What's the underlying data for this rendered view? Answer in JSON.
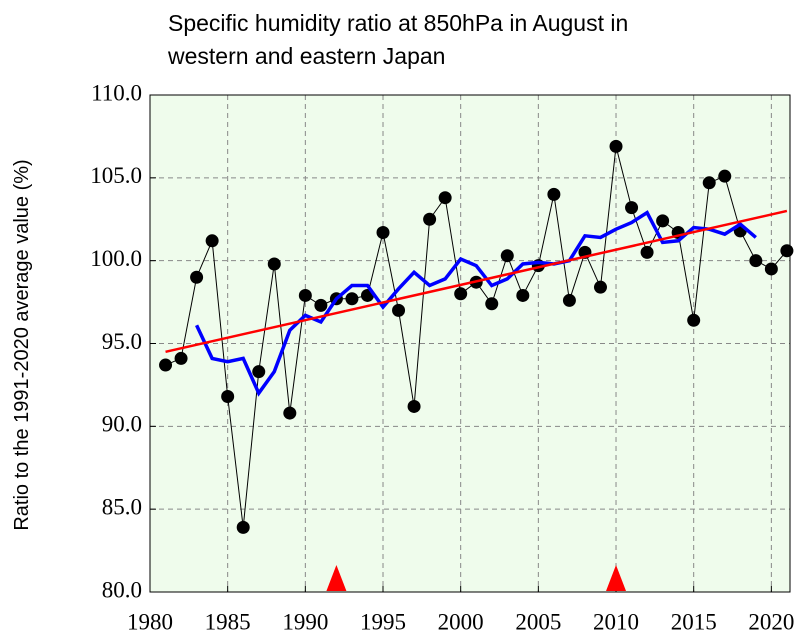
{
  "chart_data": {
    "type": "line",
    "title": [
      "Specific humidity ratio at 850hPa in August in",
      "western and eastern Japan"
    ],
    "y_label": "Ratio to the 1991-2020 average value (%)",
    "xlim": [
      1980,
      2021.2
    ],
    "ylim": [
      80,
      110
    ],
    "xticks": [
      1980,
      1985,
      1990,
      1995,
      2000,
      2005,
      2010,
      2015,
      2020
    ],
    "yticks": [
      {
        "value": 80,
        "label": "80.0"
      },
      {
        "value": 85,
        "label": "85.0"
      },
      {
        "value": 90,
        "label": "90.0"
      },
      {
        "value": 95,
        "label": "95.0"
      },
      {
        "value": 100,
        "label": "100.0"
      },
      {
        "value": 105,
        "label": "105.0"
      },
      {
        "value": 110,
        "label": "110.0"
      }
    ],
    "grid": true,
    "background": "#effcec",
    "series": [
      {
        "color": "#000000",
        "marker": "circle",
        "line_width": 1,
        "x": [
          1981,
          1982,
          1983,
          1984,
          1985,
          1986,
          1987,
          1988,
          1989,
          1990,
          1991,
          1992,
          1993,
          1994,
          1995,
          1996,
          1997,
          1998,
          1999,
          2000,
          2001,
          2002,
          2003,
          2004,
          2005,
          2006,
          2007,
          2008,
          2009,
          2010,
          2011,
          2012,
          2013,
          2014,
          2015,
          2016,
          2017,
          2018,
          2019,
          2020,
          2021
        ],
        "values": [
          93.7,
          94.1,
          99.0,
          101.2,
          91.8,
          83.9,
          93.3,
          99.8,
          90.8,
          97.9,
          97.3,
          97.7,
          97.7,
          97.9,
          101.7,
          97.0,
          91.2,
          102.5,
          103.8,
          98.0,
          98.7,
          97.4,
          100.3,
          97.9,
          99.7,
          104.0,
          97.6,
          100.5,
          98.4,
          106.9,
          103.2,
          100.5,
          102.4,
          101.7,
          96.4,
          104.7,
          105.1,
          101.8,
          100.0,
          99.5,
          100.6
        ]
      },
      {
        "color": "#0000ff",
        "marker": "none",
        "line_width": 3.5,
        "x": [
          1983,
          1984,
          1985,
          1986,
          1987,
          1988,
          1989,
          1990,
          1991,
          1992,
          1993,
          1994,
          1995,
          1996,
          1997,
          1998,
          1999,
          2000,
          2001,
          2002,
          2003,
          2004,
          2005,
          2006,
          2007,
          2008,
          2009,
          2010,
          2011,
          2012,
          2013,
          2014,
          2015,
          2016,
          2017,
          2018,
          2019
        ],
        "values": [
          96.1,
          94.1,
          93.9,
          94.1,
          92.0,
          93.3,
          95.8,
          96.7,
          96.3,
          97.7,
          98.5,
          98.5,
          97.2,
          98.3,
          99.3,
          98.5,
          98.9,
          100.1,
          99.7,
          98.5,
          98.9,
          99.8,
          99.9,
          99.8,
          100.0,
          101.5,
          101.4,
          101.9,
          102.3,
          102.9,
          101.1,
          101.2,
          102.0,
          101.9,
          101.6,
          102.2,
          101.4
        ]
      },
      {
        "color": "#ff0000",
        "marker": "none",
        "line_width": 2.5,
        "x": [
          1981,
          2021
        ],
        "values": [
          94.5,
          103.0
        ]
      }
    ],
    "triangles": {
      "color": "#ff0000",
      "x": [
        1992,
        2010
      ]
    }
  }
}
